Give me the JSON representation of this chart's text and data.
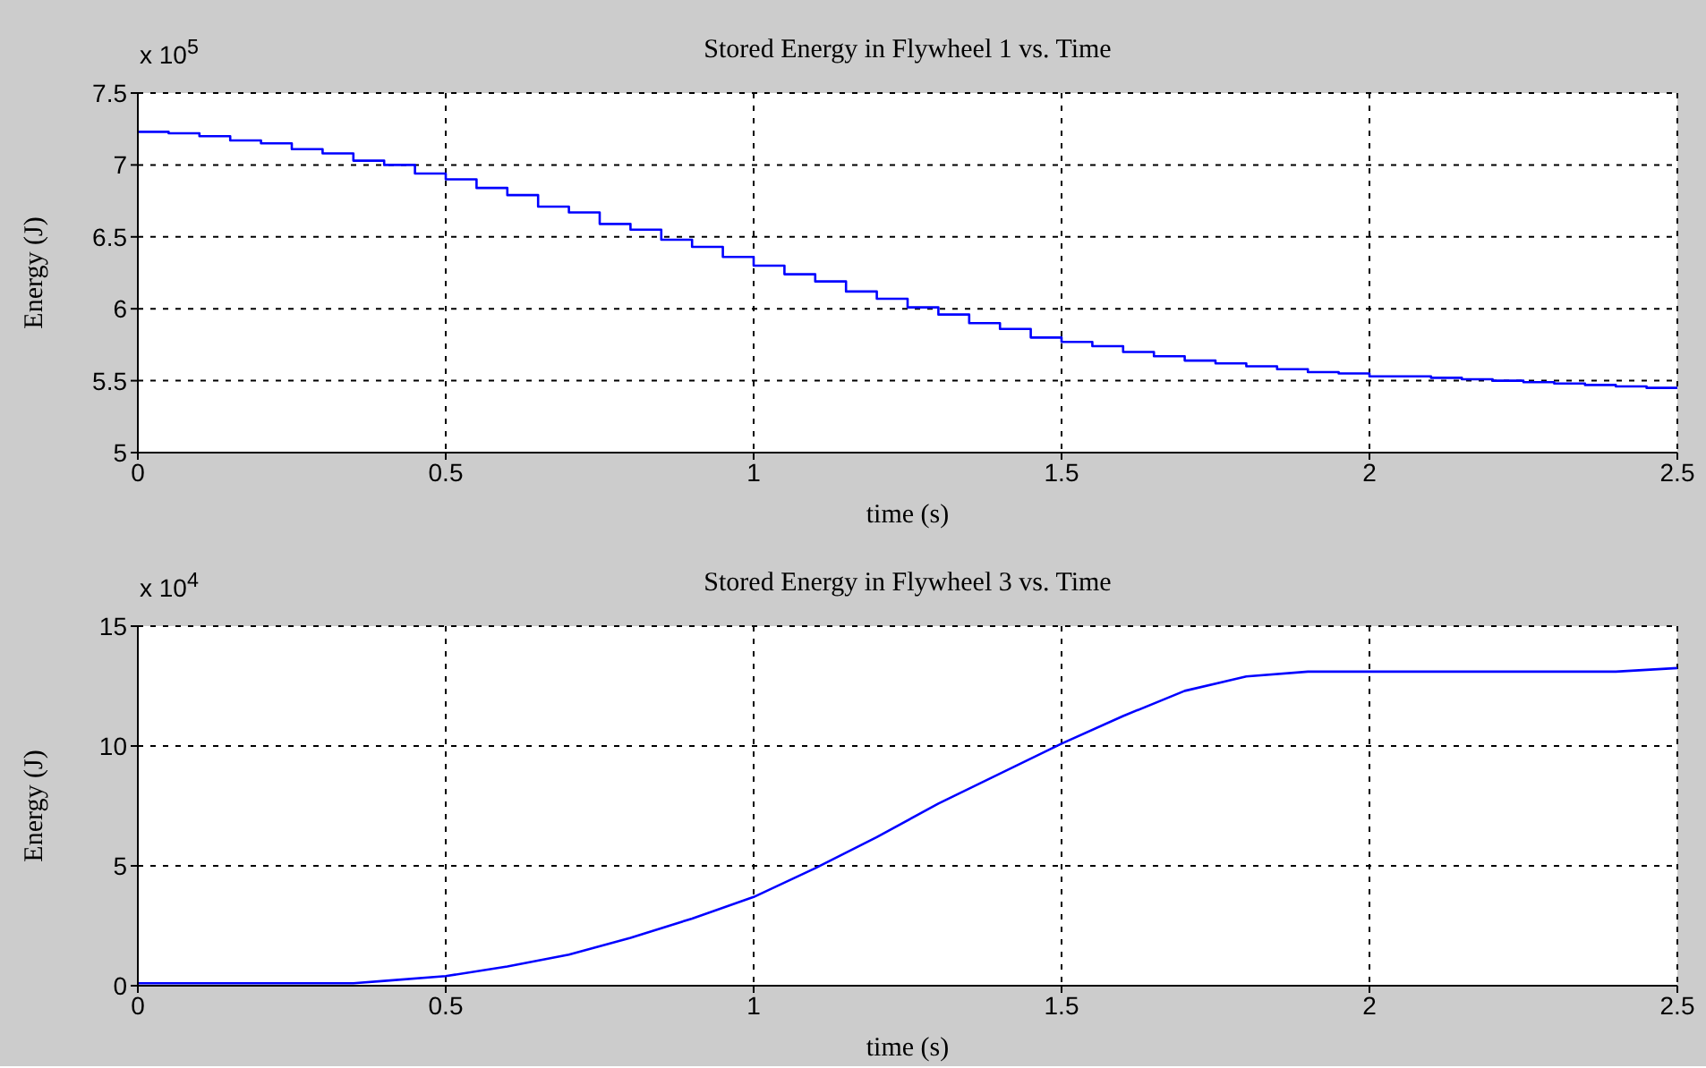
{
  "chart_data": [
    {
      "type": "step",
      "title": "Stored Energy in Flywheel 1 vs. Time",
      "xlabel": "time (s)",
      "ylabel": "Energy (J)",
      "annotations": [
        "x 10$^{5}$"
      ],
      "grid": true,
      "xlim": [
        0,
        2.5
      ],
      "xticks": [
        0,
        0.5,
        1,
        1.5,
        2,
        2.5
      ],
      "ylim": [
        5,
        7.5
      ],
      "yticks": [
        5,
        5.5,
        6,
        6.5,
        7,
        7.5
      ],
      "x": [
        0,
        0.05,
        0.1,
        0.15,
        0.2,
        0.25,
        0.3,
        0.35,
        0.4,
        0.45,
        0.5,
        0.55,
        0.6,
        0.65,
        0.7,
        0.75,
        0.8,
        0.85,
        0.9,
        0.95,
        1,
        1.05,
        1.1,
        1.15,
        1.2,
        1.25,
        1.3,
        1.35,
        1.4,
        1.45,
        1.5,
        1.55,
        1.6,
        1.65,
        1.7,
        1.75,
        1.8,
        1.85,
        1.9,
        1.95,
        2,
        2.05,
        2.1,
        2.15,
        2.2,
        2.25,
        2.3,
        2.35,
        2.4,
        2.45,
        2.5
      ],
      "series": [
        {
          "color": "#0000ff",
          "values": [
            7.23,
            7.22,
            7.2,
            7.17,
            7.15,
            7.11,
            7.08,
            7.03,
            7.0,
            6.94,
            6.9,
            6.84,
            6.79,
            6.71,
            6.67,
            6.59,
            6.55,
            6.48,
            6.43,
            6.36,
            6.3,
            6.24,
            6.19,
            6.12,
            6.07,
            6.01,
            5.96,
            5.9,
            5.86,
            5.8,
            5.77,
            5.74,
            5.7,
            5.67,
            5.64,
            5.62,
            5.6,
            5.58,
            5.56,
            5.55,
            5.53,
            5.53,
            5.52,
            5.51,
            5.5,
            5.49,
            5.48,
            5.47,
            5.46,
            5.45,
            5.45
          ]
        }
      ]
    },
    {
      "type": "line",
      "title": "Stored Energy in Flywheel 3 vs. Time",
      "xlabel": "time (s)",
      "ylabel": "Energy (J)",
      "annotations": [
        "x 10$^{4}$"
      ],
      "grid": true,
      "xlim": [
        0,
        2.5
      ],
      "xticks": [
        0,
        0.5,
        1,
        1.5,
        2,
        2.5
      ],
      "ylim": [
        0,
        15
      ],
      "yticks": [
        0,
        5,
        10,
        15
      ],
      "x": [
        0,
        0.35,
        0.4,
        0.5,
        0.6,
        0.7,
        0.8,
        0.9,
        1,
        1.1,
        1.2,
        1.3,
        1.4,
        1.5,
        1.6,
        1.7,
        1.8,
        1.9,
        2,
        2.4,
        2.5
      ],
      "series": [
        {
          "color": "#0000ff",
          "values": [
            0.1,
            0.1,
            0.2,
            0.4,
            0.8,
            1.3,
            2.0,
            2.8,
            3.7,
            4.9,
            6.2,
            7.6,
            8.85,
            10.1,
            11.25,
            12.3,
            12.9,
            13.1,
            13.1,
            13.1,
            13.25
          ]
        }
      ]
    }
  ]
}
